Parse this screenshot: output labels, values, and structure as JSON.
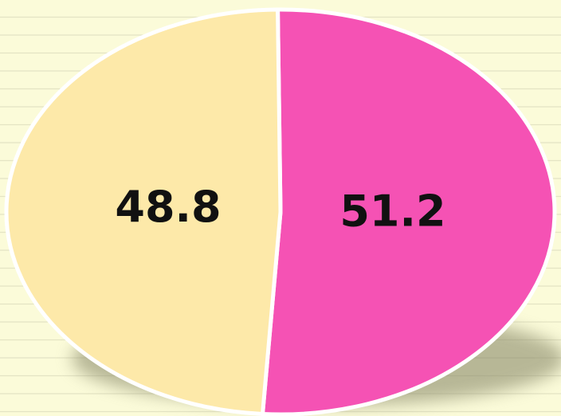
{
  "chart_data": {
    "type": "pie",
    "values": [
      51.2,
      48.8
    ],
    "colors": [
      "#f552b4",
      "#fde9a9"
    ]
  }
}
